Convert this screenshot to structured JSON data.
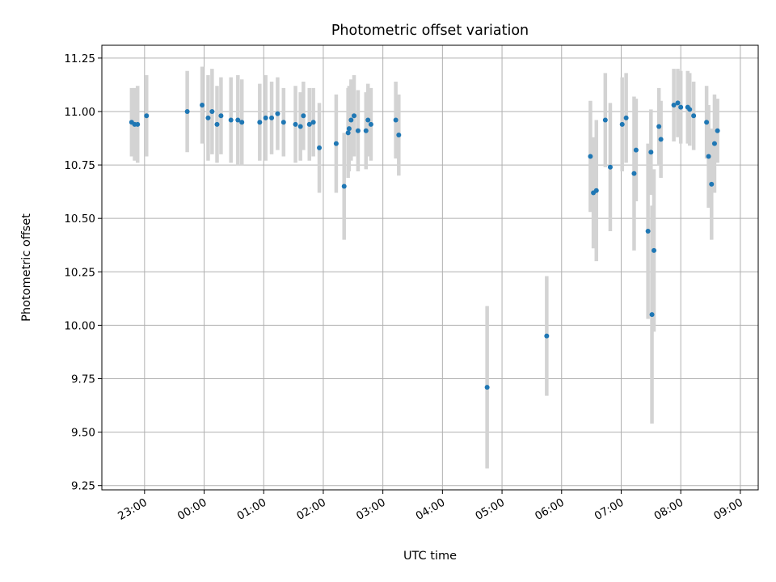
{
  "chart_data": {
    "type": "scatter",
    "title": "Photometric offset variation",
    "xlabel": "UTC time",
    "ylabel": "Photometric offset",
    "x_axis": "time",
    "xlim": [
      "22:17",
      "09:18"
    ],
    "ylim": [
      9.23,
      11.31
    ],
    "x_ticks": [
      "23:00",
      "00:00",
      "01:00",
      "02:00",
      "03:00",
      "04:00",
      "05:00",
      "06:00",
      "07:00",
      "08:00",
      "09:00"
    ],
    "y_ticks": [
      9.25,
      9.5,
      9.75,
      10.0,
      10.25,
      10.5,
      10.75,
      11.0,
      11.25
    ],
    "y_tick_labels": [
      "9.25",
      "9.50",
      "9.75",
      "10.00",
      "10.25",
      "10.50",
      "10.75",
      "11.00",
      "11.25"
    ],
    "grid": true,
    "colors": {
      "marker": "#1f77b4",
      "error_bar": "#d3d3d3",
      "grid": "#b0b0b0"
    },
    "series": [
      {
        "x": [
          "22:47",
          "22:50",
          "22:53",
          "23:02",
          "23:43",
          "23:58",
          "00:04",
          "00:08",
          "00:13",
          "00:17",
          "00:27",
          "00:34",
          "00:38",
          "00:56",
          "01:02",
          "01:08",
          "01:14",
          "01:20",
          "01:32",
          "01:37",
          "01:40",
          "01:46",
          "01:50",
          "01:56",
          "02:13",
          "02:21",
          "02:25",
          "02:26",
          "02:28",
          "02:31",
          "02:35",
          "02:43",
          "02:45",
          "02:48",
          "03:13",
          "03:16",
          "04:45",
          "05:45",
          "06:29",
          "06:32",
          "06:35",
          "06:44",
          "06:49",
          "07:01",
          "07:05",
          "07:13",
          "07:15",
          "07:27",
          "07:30",
          "07:31",
          "07:33",
          "07:38",
          "07:40",
          "07:53",
          "07:57",
          "08:00",
          "08:07",
          "08:09",
          "08:13",
          "08:26",
          "08:28",
          "08:31",
          "08:34",
          "08:37"
        ],
        "y": [
          10.95,
          10.94,
          10.94,
          10.98,
          11.0,
          11.03,
          10.97,
          11.0,
          10.94,
          10.98,
          10.96,
          10.96,
          10.95,
          10.95,
          10.97,
          10.97,
          10.99,
          10.95,
          10.94,
          10.93,
          10.98,
          10.94,
          10.95,
          10.83,
          10.85,
          10.65,
          10.9,
          10.92,
          10.96,
          10.98,
          10.91,
          10.91,
          10.96,
          10.94,
          10.96,
          10.89,
          9.71,
          9.95,
          10.79,
          10.62,
          10.63,
          10.96,
          10.74,
          10.94,
          10.97,
          10.71,
          10.82,
          10.44,
          10.81,
          10.05,
          10.35,
          10.93,
          10.87,
          11.03,
          11.04,
          11.02,
          11.02,
          11.01,
          10.98,
          10.95,
          10.79,
          10.66,
          10.85,
          10.91
        ],
        "yerr": [
          0.16,
          0.17,
          0.18,
          0.19,
          0.19,
          0.18,
          0.2,
          0.2,
          0.18,
          0.18,
          0.2,
          0.21,
          0.2,
          0.18,
          0.2,
          0.17,
          0.17,
          0.16,
          0.18,
          0.16,
          0.16,
          0.17,
          0.16,
          0.21,
          0.23,
          0.25,
          0.21,
          0.2,
          0.19,
          0.19,
          0.19,
          0.18,
          0.17,
          0.17,
          0.18,
          0.19,
          0.38,
          0.28,
          0.26,
          0.26,
          0.33,
          0.22,
          0.3,
          0.22,
          0.21,
          0.36,
          0.24,
          0.41,
          0.2,
          0.51,
          0.38,
          0.18,
          0.18,
          0.17,
          0.16,
          0.17,
          0.17,
          0.17,
          0.16,
          0.17,
          0.24,
          0.26,
          0.23,
          0.15
        ]
      }
    ]
  }
}
